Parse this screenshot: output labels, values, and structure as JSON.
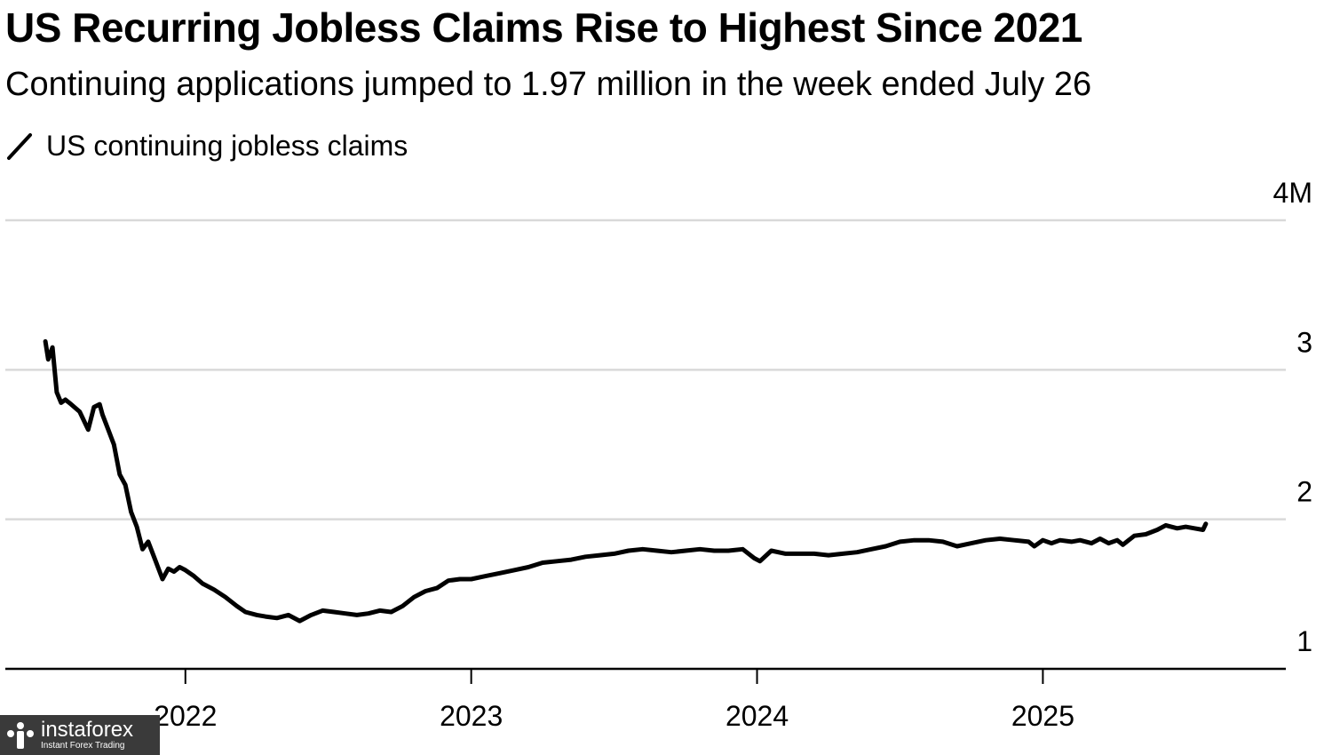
{
  "chart_data": {
    "type": "line",
    "title": "US Recurring Jobless Claims Rise to Highest Since 2021",
    "subtitle": "Continuing applications jumped to 1.97 million in the week ended July 26",
    "legend": [
      "US continuing jobless claims"
    ],
    "y_unit_label": "M",
    "ylim": [
      1,
      4
    ],
    "yticks": [
      {
        "value": 1,
        "label": "1"
      },
      {
        "value": 2,
        "label": "2"
      },
      {
        "value": 3,
        "label": "3"
      },
      {
        "value": 4,
        "label": "4M"
      }
    ],
    "xticks": [
      {
        "value": 2022,
        "label": "2022"
      },
      {
        "value": 2023,
        "label": "2023"
      },
      {
        "value": 2024,
        "label": "2024"
      },
      {
        "value": 2025,
        "label": "2025"
      }
    ],
    "xlim": [
      2021.37,
      2025.85
    ],
    "grid": true,
    "series": [
      {
        "name": "US continuing jobless claims",
        "color": "#000000",
        "x": [
          2021.51,
          2021.52,
          2021.535,
          2021.55,
          2021.565,
          2021.58,
          2021.6,
          2021.63,
          2021.66,
          2021.68,
          2021.7,
          2021.71,
          2021.73,
          2021.75,
          2021.77,
          2021.79,
          2021.81,
          2021.83,
          2021.85,
          2021.87,
          2021.89,
          2021.9,
          2021.92,
          2021.94,
          2021.96,
          2021.98,
          2022.0,
          2022.03,
          2022.06,
          2022.1,
          2022.14,
          2022.18,
          2022.21,
          2022.25,
          2022.28,
          2022.32,
          2022.36,
          2022.4,
          2022.44,
          2022.48,
          2022.52,
          2022.56,
          2022.6,
          2022.64,
          2022.68,
          2022.72,
          2022.76,
          2022.8,
          2022.84,
          2022.88,
          2022.92,
          2022.96,
          2023.0,
          2023.05,
          2023.1,
          2023.15,
          2023.2,
          2023.25,
          2023.3,
          2023.35,
          2023.4,
          2023.45,
          2023.5,
          2023.55,
          2023.6,
          2023.65,
          2023.7,
          2023.75,
          2023.8,
          2023.85,
          2023.9,
          2023.95,
          2023.99,
          2024.01,
          2024.05,
          2024.1,
          2024.15,
          2024.2,
          2024.25,
          2024.3,
          2024.35,
          2024.4,
          2024.45,
          2024.5,
          2024.55,
          2024.6,
          2024.65,
          2024.7,
          2024.75,
          2024.8,
          2024.85,
          2024.9,
          2024.95,
          2024.97,
          2025.0,
          2025.03,
          2025.06,
          2025.1,
          2025.13,
          2025.17,
          2025.2,
          2025.23,
          2025.26,
          2025.28,
          2025.32,
          2025.36,
          2025.4,
          2025.43,
          2025.47,
          2025.5,
          2025.53,
          2025.56,
          2025.57
        ],
        "y": [
          3.19,
          3.07,
          3.15,
          2.85,
          2.78,
          2.8,
          2.77,
          2.72,
          2.6,
          2.75,
          2.77,
          2.7,
          2.6,
          2.5,
          2.3,
          2.23,
          2.05,
          1.95,
          1.8,
          1.85,
          1.75,
          1.7,
          1.6,
          1.67,
          1.65,
          1.68,
          1.66,
          1.62,
          1.57,
          1.53,
          1.48,
          1.42,
          1.38,
          1.36,
          1.35,
          1.34,
          1.36,
          1.32,
          1.36,
          1.39,
          1.38,
          1.37,
          1.36,
          1.37,
          1.39,
          1.38,
          1.42,
          1.48,
          1.52,
          1.54,
          1.59,
          1.6,
          1.6,
          1.62,
          1.64,
          1.66,
          1.68,
          1.71,
          1.72,
          1.73,
          1.75,
          1.76,
          1.77,
          1.79,
          1.8,
          1.79,
          1.78,
          1.79,
          1.8,
          1.79,
          1.79,
          1.8,
          1.74,
          1.72,
          1.79,
          1.77,
          1.77,
          1.77,
          1.76,
          1.77,
          1.78,
          1.8,
          1.82,
          1.85,
          1.86,
          1.86,
          1.85,
          1.82,
          1.84,
          1.86,
          1.87,
          1.86,
          1.85,
          1.82,
          1.86,
          1.84,
          1.86,
          1.85,
          1.86,
          1.84,
          1.87,
          1.84,
          1.86,
          1.83,
          1.89,
          1.9,
          1.93,
          1.96,
          1.94,
          1.95,
          1.94,
          1.93,
          1.97
        ]
      }
    ]
  },
  "watermark": {
    "name": "instaforex",
    "tagline": "Instant Forex Trading",
    "icon": "instaforex-logo-icon"
  },
  "colors": {
    "line": "#000000",
    "grid": "#d9d9d9",
    "axis": "#000000",
    "watermark_bg": "#3a3a3a"
  }
}
